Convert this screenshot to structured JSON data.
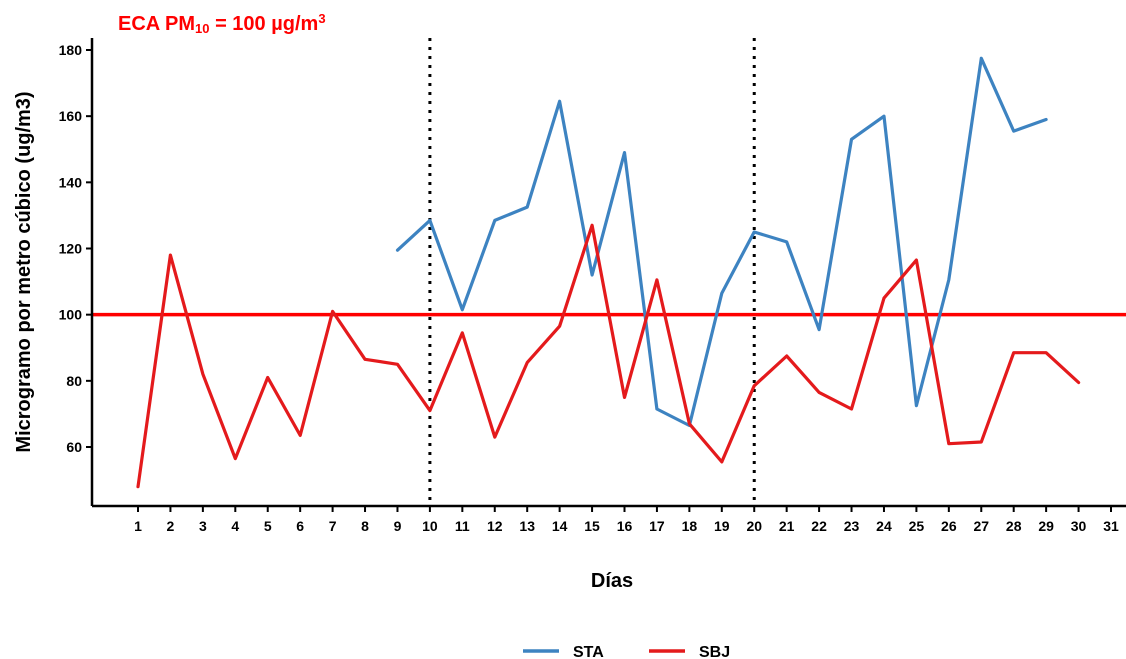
{
  "chart_data": {
    "type": "line",
    "title": {
      "prefix": "ECA PM",
      "subscript": "10",
      "suffix": " = 100 µg/m",
      "superscript": "3",
      "color": "#ff0000"
    },
    "xlabel": "Días",
    "ylabel": "Microgramo por metro cúbico (ug/m3)",
    "xlim": [
      0,
      31
    ],
    "ylim": [
      42,
      182
    ],
    "x_ticks": [
      1,
      2,
      3,
      4,
      5,
      6,
      7,
      8,
      9,
      10,
      11,
      12,
      13,
      14,
      15,
      16,
      17,
      18,
      19,
      20,
      21,
      22,
      23,
      24,
      25,
      26,
      27,
      28,
      29,
      30,
      31
    ],
    "y_ticks": [
      60,
      80,
      100,
      120,
      140,
      160,
      180
    ],
    "reference_line": {
      "y": 100,
      "color": "#ff0000"
    },
    "vertical_markers": [
      10,
      20
    ],
    "legend_position": "bottom",
    "series": [
      {
        "name": "STA",
        "color": "#3d83c1",
        "x": [
          9,
          10,
          11,
          12,
          13,
          14,
          15,
          16,
          17,
          18,
          19,
          20,
          21,
          22,
          23,
          24,
          25,
          26,
          27,
          28,
          29
        ],
        "y": [
          119.5,
          128.5,
          101.5,
          128.5,
          132.5,
          164.5,
          112,
          149,
          71.5,
          66.5,
          106.5,
          125,
          122,
          95.5,
          153,
          160,
          72.5,
          110.5,
          177.5,
          155.5,
          159
        ]
      },
      {
        "name": "SBJ",
        "color": "#e41a1c",
        "x": [
          1,
          2,
          3,
          4,
          5,
          6,
          7,
          8,
          9,
          10,
          11,
          12,
          13,
          14,
          15,
          16,
          17,
          18,
          19,
          20,
          21,
          22,
          23,
          24,
          25,
          26,
          27,
          28,
          29,
          30
        ],
        "y": [
          48,
          118,
          82,
          56.5,
          81,
          63.5,
          101,
          86.5,
          85,
          71,
          94.5,
          63,
          85.5,
          96.5,
          127,
          75,
          110.5,
          67,
          55.5,
          78.5,
          87.5,
          76.5,
          71.5,
          105,
          116.5,
          61,
          61.5,
          88.5,
          88.5,
          79.5
        ]
      }
    ]
  }
}
